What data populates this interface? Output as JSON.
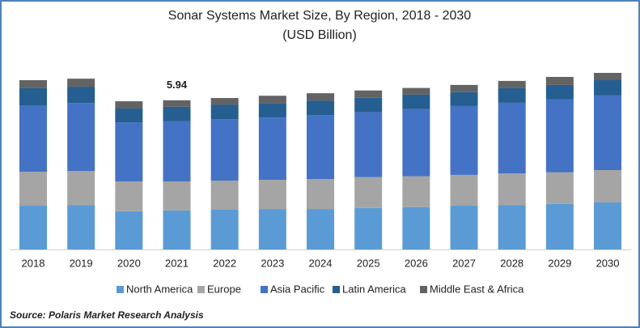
{
  "chart_data": {
    "type": "stacked_bar",
    "title": "Sonar Systems Market Size, By Region, 2018 - 2030",
    "subtitle": "(USD Billion)",
    "categories": [
      "2018",
      "2019",
      "2020",
      "2021",
      "2022",
      "2023",
      "2024",
      "2025",
      "2026",
      "2027",
      "2028",
      "2029",
      "2030"
    ],
    "series": [
      {
        "name": "North America",
        "color": "#5b9bd5",
        "values": [
          1.74,
          1.77,
          1.52,
          1.55,
          1.58,
          1.61,
          1.61,
          1.65,
          1.68,
          1.74,
          1.77,
          1.81,
          1.87
        ]
      },
      {
        "name": "Europe",
        "color": "#a5a5a5",
        "values": [
          1.35,
          1.35,
          1.19,
          1.16,
          1.16,
          1.16,
          1.19,
          1.23,
          1.23,
          1.23,
          1.26,
          1.26,
          1.29
        ]
      },
      {
        "name": "Asia Pacific",
        "color": "#4472c4",
        "values": [
          2.65,
          2.71,
          2.35,
          2.39,
          2.45,
          2.48,
          2.55,
          2.58,
          2.68,
          2.74,
          2.81,
          2.9,
          2.97
        ]
      },
      {
        "name": "Latin America",
        "color": "#255e91",
        "values": [
          0.68,
          0.65,
          0.55,
          0.58,
          0.58,
          0.58,
          0.58,
          0.58,
          0.58,
          0.55,
          0.58,
          0.58,
          0.61
        ]
      },
      {
        "name": "Middle East & Africa",
        "color": "#636363",
        "values": [
          0.32,
          0.32,
          0.29,
          0.26,
          0.26,
          0.29,
          0.29,
          0.29,
          0.26,
          0.29,
          0.29,
          0.32,
          0.29
        ]
      }
    ],
    "annotation": {
      "category_index": 3,
      "value": 5.94
    },
    "source": "Source: Polaris  Market Research Analysis"
  }
}
